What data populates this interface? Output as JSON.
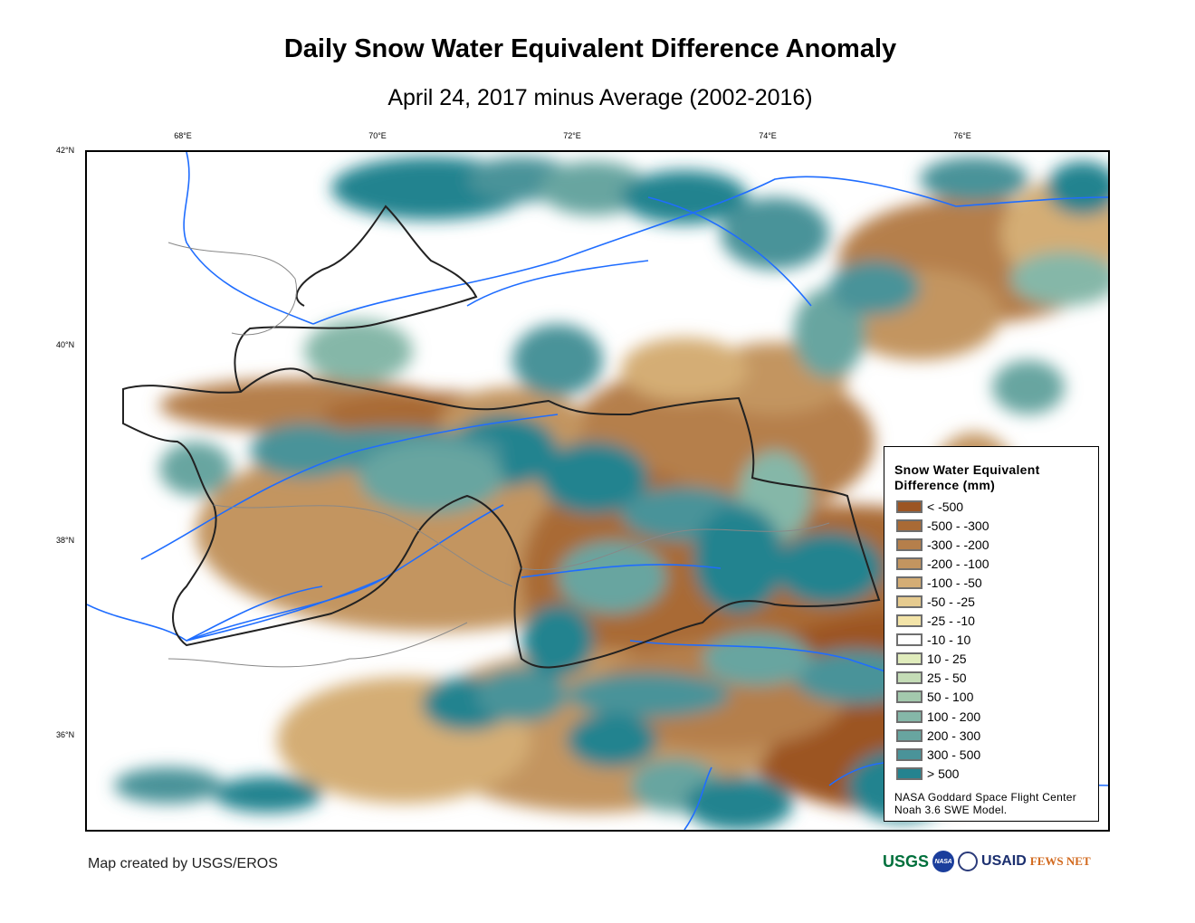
{
  "title": "Daily Snow Water Equivalent Difference Anomaly",
  "subtitle": "April 24, 2017 minus Average (2002-2016)",
  "lon_ticks": [
    "68°E",
    "70°E",
    "72°E",
    "74°E",
    "76°E"
  ],
  "lat_ticks": [
    "42°N",
    "40°N",
    "38°N",
    "36°N"
  ],
  "legend": {
    "title_line1": "Snow Water Equivalent",
    "title_line2": "Difference (mm)",
    "items": [
      {
        "label": "< -500",
        "color": "#9c5523"
      },
      {
        "label": "-500 - -300",
        "color": "#a96a35"
      },
      {
        "label": "-300 - -200",
        "color": "#b57f4b"
      },
      {
        "label": "-200 - -100",
        "color": "#c39560"
      },
      {
        "label": "-100 - -50",
        "color": "#d4ad75"
      },
      {
        "label": "-50 - -25",
        "color": "#e6cb8f"
      },
      {
        "label": "-25 - -10",
        "color": "#f3e4a8"
      },
      {
        "label": "-10 - 10",
        "color": "#ffffff"
      },
      {
        "label": "10 - 25",
        "color": "#e0ecbc"
      },
      {
        "label": "25 - 50",
        "color": "#c4dcb6"
      },
      {
        "label": "50 - 100",
        "color": "#a3c9ad"
      },
      {
        "label": "100 - 200",
        "color": "#85b7a8"
      },
      {
        "label": "200 - 300",
        "color": "#68a5a0"
      },
      {
        "label": "300 - 500",
        "color": "#4a9399"
      },
      {
        "label": "> 500",
        "color": "#24838f"
      }
    ],
    "source_line1": "NASA Goddard Space Flight Center",
    "source_line2": "Noah 3.6 SWE Model."
  },
  "credit": "Map created by USGS/EROS",
  "logos": [
    "USGS",
    "NASA",
    "USAID",
    "FEWS NET"
  ]
}
